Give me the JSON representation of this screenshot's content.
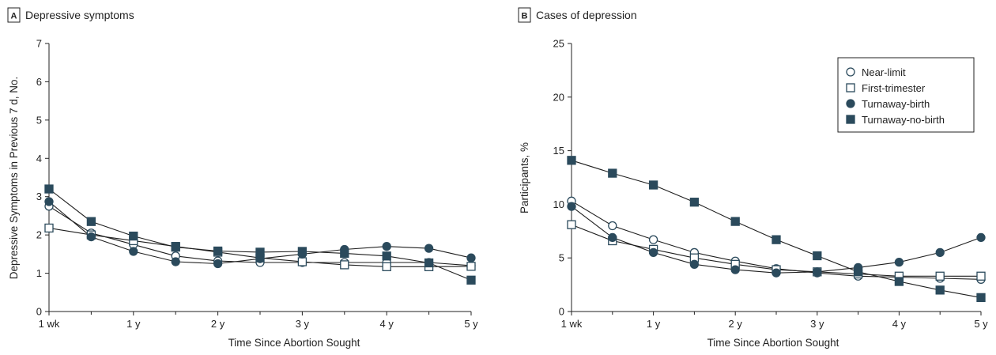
{
  "panels": [
    {
      "letter": "A",
      "title": "Depressive symptoms",
      "xlabel": "Time Since Abortion Sought",
      "ylabel": "Depressive Symptoms in Previous 7 d, No."
    },
    {
      "letter": "B",
      "title": "Cases of depression",
      "xlabel": "Time Since Abortion Sought",
      "ylabel": "Participants, %"
    }
  ],
  "legend": [
    {
      "label": "Near-limit",
      "marker": "circle-open"
    },
    {
      "label": "First-trimester",
      "marker": "square-open"
    },
    {
      "label": "Turnaway-birth",
      "marker": "circle-filled"
    },
    {
      "label": "Turnaway-no-birth",
      "marker": "square-filled"
    }
  ],
  "colors": {
    "series": "#2b4a5c",
    "axis": "#222222"
  },
  "chart_data": [
    {
      "type": "line",
      "title": "Depressive symptoms",
      "xlabel": "Time Since Abortion Sought",
      "ylabel": "Depressive Symptoms in Previous 7 d, No.",
      "x": [
        0,
        0.5,
        1,
        1.5,
        2,
        2.5,
        3,
        3.5,
        4,
        4.5,
        5
      ],
      "x_tick_labels": [
        "1 wk",
        "1 y",
        "2 y",
        "3 y",
        "4 y",
        "5 y"
      ],
      "y_ticks": [
        0,
        1,
        2,
        3,
        4,
        5,
        6,
        7
      ],
      "ylim": [
        0,
        7
      ],
      "grid": false,
      "series": [
        {
          "name": "Near-limit",
          "marker": "circle-open",
          "values": [
            2.75,
            2.05,
            1.75,
            1.45,
            1.32,
            1.28,
            1.28,
            1.28,
            1.28,
            1.28,
            1.2
          ]
        },
        {
          "name": "First-trimester",
          "marker": "square-open",
          "values": [
            2.18,
            2.0,
            1.85,
            1.7,
            1.55,
            1.4,
            1.3,
            1.22,
            1.17,
            1.17,
            1.18
          ]
        },
        {
          "name": "Turnaway-birth",
          "marker": "circle-filled",
          "values": [
            2.87,
            1.95,
            1.57,
            1.3,
            1.25,
            1.38,
            1.5,
            1.62,
            1.7,
            1.65,
            1.4
          ]
        },
        {
          "name": "Turnaway-no-birth",
          "marker": "square-filled",
          "values": [
            3.2,
            2.35,
            1.97,
            1.68,
            1.58,
            1.55,
            1.57,
            1.52,
            1.45,
            1.27,
            0.82
          ]
        }
      ]
    },
    {
      "type": "line",
      "title": "Cases of depression",
      "xlabel": "Time Since Abortion Sought",
      "ylabel": "Participants, %",
      "x": [
        0,
        0.5,
        1,
        1.5,
        2,
        2.5,
        3,
        3.5,
        4,
        4.5,
        5
      ],
      "x_tick_labels": [
        "1 wk",
        "1 y",
        "2 y",
        "3 y",
        "4 y",
        "5 y"
      ],
      "y_ticks": [
        0,
        5,
        10,
        15,
        20,
        25
      ],
      "ylim": [
        0,
        25
      ],
      "grid": false,
      "legend_position": "top-right",
      "series": [
        {
          "name": "Near-limit",
          "marker": "circle-open",
          "values": [
            10.3,
            8.0,
            6.7,
            5.5,
            4.7,
            4.0,
            3.6,
            3.3,
            3.2,
            3.1,
            3.0
          ]
        },
        {
          "name": "First-trimester",
          "marker": "square-open",
          "values": [
            8.1,
            6.6,
            5.8,
            5.0,
            4.4,
            3.9,
            3.7,
            3.5,
            3.3,
            3.3,
            3.3
          ]
        },
        {
          "name": "Turnaway-birth",
          "marker": "circle-filled",
          "values": [
            9.8,
            6.9,
            5.5,
            4.4,
            3.9,
            3.6,
            3.7,
            4.1,
            4.6,
            5.5,
            6.9
          ]
        },
        {
          "name": "Turnaway-no-birth",
          "marker": "square-filled",
          "values": [
            14.1,
            12.9,
            11.8,
            10.2,
            8.4,
            6.7,
            5.2,
            3.7,
            2.8,
            2.0,
            1.3
          ]
        }
      ]
    }
  ]
}
